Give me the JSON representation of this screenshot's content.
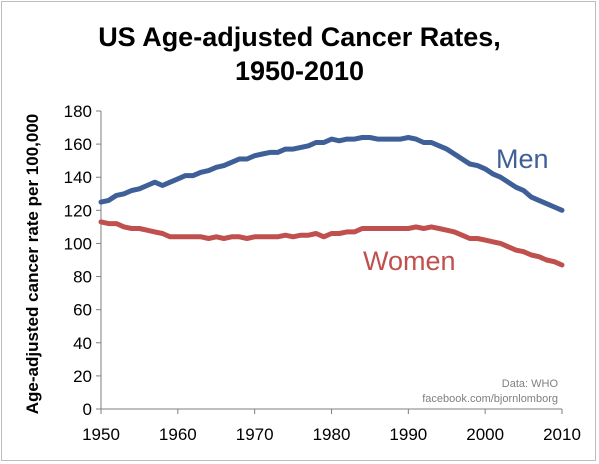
{
  "chart_data": {
    "type": "line",
    "title_lines": [
      "US Age-adjusted Cancer Rates,",
      "1950-2010"
    ],
    "xlabel": "",
    "ylabel": "Age-adjusted cancer rate per 100,000",
    "xlim": [
      1950,
      2010
    ],
    "ylim": [
      0,
      180
    ],
    "x_ticks": [
      1950,
      1960,
      1970,
      1980,
      1990,
      2000,
      2010
    ],
    "y_ticks": [
      0,
      20,
      40,
      60,
      80,
      100,
      120,
      140,
      160,
      180
    ],
    "grid": false,
    "annotations": [
      "Data: WHO",
      "facebook.com/bjornlomborg"
    ],
    "series": [
      {
        "name": "Men",
        "color": "#3e5f98",
        "x": [
          1950,
          1951,
          1952,
          1953,
          1954,
          1955,
          1956,
          1957,
          1958,
          1959,
          1960,
          1961,
          1962,
          1963,
          1964,
          1965,
          1966,
          1967,
          1968,
          1969,
          1970,
          1971,
          1972,
          1973,
          1974,
          1975,
          1976,
          1977,
          1978,
          1979,
          1980,
          1981,
          1982,
          1983,
          1984,
          1985,
          1986,
          1987,
          1988,
          1989,
          1990,
          1991,
          1992,
          1993,
          1994,
          1995,
          1996,
          1997,
          1998,
          1999,
          2000,
          2001,
          2002,
          2003,
          2004,
          2005,
          2006,
          2007,
          2008,
          2009,
          2010
        ],
        "values": [
          125,
          126,
          129,
          130,
          132,
          133,
          135,
          137,
          135,
          137,
          139,
          141,
          141,
          143,
          144,
          146,
          147,
          149,
          151,
          151,
          153,
          154,
          155,
          155,
          157,
          157,
          158,
          159,
          161,
          161,
          163,
          162,
          163,
          163,
          164,
          164,
          163,
          163,
          163,
          163,
          164,
          163,
          161,
          161,
          159,
          157,
          154,
          151,
          148,
          147,
          145,
          142,
          140,
          137,
          134,
          132,
          128,
          126,
          124,
          122,
          120
        ]
      },
      {
        "name": "Women",
        "color": "#c0504d",
        "x": [
          1950,
          1951,
          1952,
          1953,
          1954,
          1955,
          1956,
          1957,
          1958,
          1959,
          1960,
          1961,
          1962,
          1963,
          1964,
          1965,
          1966,
          1967,
          1968,
          1969,
          1970,
          1971,
          1972,
          1973,
          1974,
          1975,
          1976,
          1977,
          1978,
          1979,
          1980,
          1981,
          1982,
          1983,
          1984,
          1985,
          1986,
          1987,
          1988,
          1989,
          1990,
          1991,
          1992,
          1993,
          1994,
          1995,
          1996,
          1997,
          1998,
          1999,
          2000,
          2001,
          2002,
          2003,
          2004,
          2005,
          2006,
          2007,
          2008,
          2009,
          2010
        ],
        "values": [
          113,
          112,
          112,
          110,
          109,
          109,
          108,
          107,
          106,
          104,
          104,
          104,
          104,
          104,
          103,
          104,
          103,
          104,
          104,
          103,
          104,
          104,
          104,
          104,
          105,
          104,
          105,
          105,
          106,
          104,
          106,
          106,
          107,
          107,
          109,
          109,
          109,
          109,
          109,
          109,
          109,
          110,
          109,
          110,
          109,
          108,
          107,
          105,
          103,
          103,
          102,
          101,
          100,
          98,
          96,
          95,
          93,
          92,
          90,
          89,
          87
        ]
      }
    ]
  }
}
